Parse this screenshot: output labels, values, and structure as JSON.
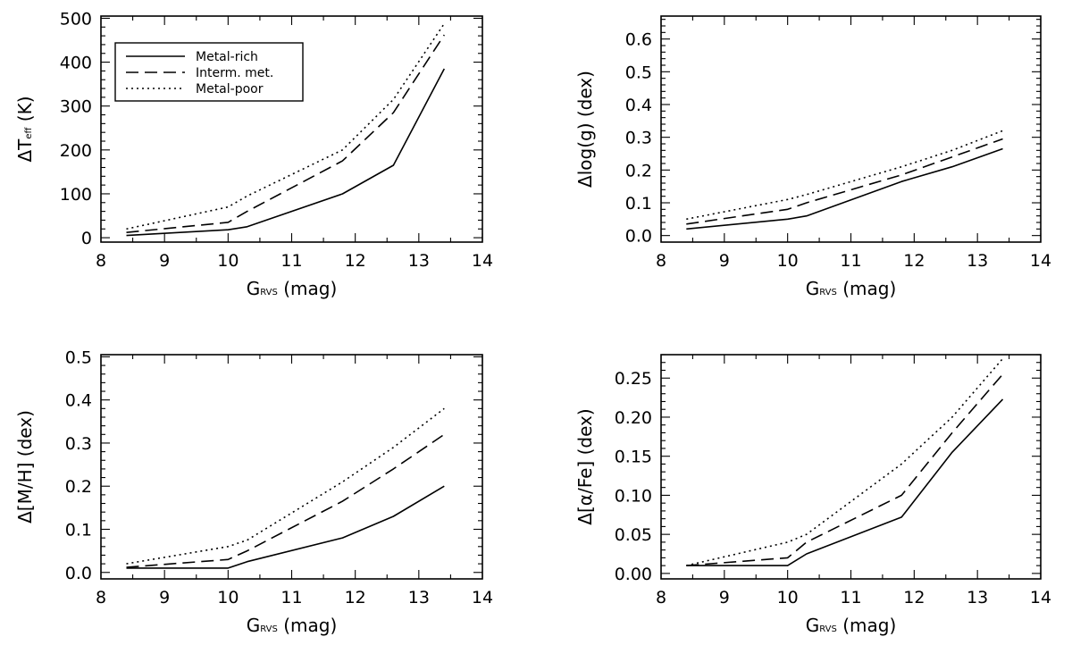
{
  "chart_data": [
    {
      "type": "line",
      "id": "teff",
      "xlabel": {
        "main": "G",
        "sub": "RVS",
        "rest": " (mag)"
      },
      "ylabel": {
        "main": "ΔT",
        "sub": "eff",
        "rest": " (K)"
      },
      "xlim": [
        8,
        14
      ],
      "ylim": [
        -10,
        505
      ],
      "xticks": [
        8,
        9,
        10,
        11,
        12,
        13,
        14
      ],
      "yticks": [
        "0",
        "100",
        "200",
        "300",
        "400",
        "500"
      ],
      "legend": {
        "position": "top-left"
      },
      "series": [
        {
          "name": "Metal-rich",
          "style": "solid",
          "x": [
            8.4,
            10.0,
            10.3,
            11.8,
            12.6,
            13.4
          ],
          "y": [
            5,
            18,
            25,
            100,
            165,
            385
          ]
        },
        {
          "name": "Interm. met.",
          "style": "dashed",
          "x": [
            8.4,
            10.0,
            10.3,
            11.8,
            12.6,
            13.4
          ],
          "y": [
            12,
            35,
            60,
            175,
            285,
            462
          ]
        },
        {
          "name": "Metal-poor",
          "style": "dotted",
          "x": [
            8.4,
            10.0,
            10.3,
            11.8,
            12.6,
            13.4
          ],
          "y": [
            20,
            70,
            95,
            200,
            315,
            488
          ]
        }
      ]
    },
    {
      "type": "line",
      "id": "logg",
      "xlabel": {
        "main": "G",
        "sub": "RVS",
        "rest": " (mag)"
      },
      "ylabel": {
        "main": "Δlog(g) (dex)",
        "sub": "",
        "rest": ""
      },
      "xlim": [
        8,
        14
      ],
      "ylim": [
        -0.02,
        0.67
      ],
      "xticks": [
        8,
        9,
        10,
        11,
        12,
        13,
        14
      ],
      "yticks": [
        "0.0",
        "0.1",
        "0.2",
        "0.3",
        "0.4",
        "0.5",
        "0.6"
      ],
      "series": [
        {
          "name": "Metal-rich",
          "style": "solid",
          "x": [
            8.4,
            10.0,
            10.3,
            11.8,
            12.6,
            13.4
          ],
          "y": [
            0.02,
            0.05,
            0.06,
            0.165,
            0.21,
            0.265
          ]
        },
        {
          "name": "Interm. met.",
          "style": "dashed",
          "x": [
            8.4,
            10.0,
            10.3,
            11.8,
            12.6,
            13.4
          ],
          "y": [
            0.035,
            0.08,
            0.1,
            0.185,
            0.24,
            0.295
          ]
        },
        {
          "name": "Metal-poor",
          "style": "dotted",
          "x": [
            8.4,
            10.0,
            10.3,
            11.8,
            12.6,
            13.4
          ],
          "y": [
            0.05,
            0.11,
            0.125,
            0.21,
            0.26,
            0.32
          ]
        }
      ]
    },
    {
      "type": "line",
      "id": "mh",
      "xlabel": {
        "main": "G",
        "sub": "RVS",
        "rest": " (mag)"
      },
      "ylabel": {
        "main": "Δ[M/H] (dex)",
        "sub": "",
        "rest": ""
      },
      "xlim": [
        8,
        14
      ],
      "ylim": [
        -0.015,
        0.505
      ],
      "xticks": [
        8,
        9,
        10,
        11,
        12,
        13,
        14
      ],
      "yticks": [
        "0.0",
        "0.1",
        "0.2",
        "0.3",
        "0.4",
        "0.5"
      ],
      "series": [
        {
          "name": "Metal-rich",
          "style": "solid",
          "x": [
            8.4,
            10.0,
            10.3,
            11.8,
            12.6,
            13.4
          ],
          "y": [
            0.01,
            0.01,
            0.025,
            0.08,
            0.13,
            0.2
          ]
        },
        {
          "name": "Interm. met.",
          "style": "dashed",
          "x": [
            8.4,
            10.0,
            10.3,
            11.8,
            12.6,
            13.4
          ],
          "y": [
            0.012,
            0.03,
            0.05,
            0.165,
            0.24,
            0.32
          ]
        },
        {
          "name": "Metal-poor",
          "style": "dotted",
          "x": [
            8.4,
            10.0,
            10.3,
            11.8,
            12.6,
            13.4
          ],
          "y": [
            0.02,
            0.06,
            0.075,
            0.21,
            0.29,
            0.38
          ]
        }
      ]
    },
    {
      "type": "line",
      "id": "alphafe",
      "xlabel": {
        "main": "G",
        "sub": "RVS",
        "rest": " (mag)"
      },
      "ylabel": {
        "main": "Δ[α/Fe] (dex)",
        "sub": "",
        "rest": ""
      },
      "xlim": [
        8,
        14
      ],
      "ylim": [
        -0.007,
        0.28
      ],
      "xticks": [
        8,
        9,
        10,
        11,
        12,
        13,
        14
      ],
      "yticks": [
        "0.00",
        "0.05",
        "0.10",
        "0.15",
        "0.20",
        "0.25"
      ],
      "series": [
        {
          "name": "Metal-rich",
          "style": "solid",
          "x": [
            8.4,
            10.0,
            10.3,
            11.8,
            12.6,
            13.4
          ],
          "y": [
            0.01,
            0.01,
            0.025,
            0.072,
            0.155,
            0.223
          ]
        },
        {
          "name": "Interm. met.",
          "style": "dashed",
          "x": [
            8.4,
            10.0,
            10.3,
            11.8,
            12.6,
            13.4
          ],
          "y": [
            0.01,
            0.02,
            0.04,
            0.1,
            0.18,
            0.255
          ]
        },
        {
          "name": "Metal-poor",
          "style": "dotted",
          "x": [
            8.4,
            10.0,
            10.3,
            11.8,
            12.6,
            13.4
          ],
          "y": [
            0.01,
            0.04,
            0.05,
            0.14,
            0.2,
            0.275
          ]
        }
      ]
    }
  ]
}
